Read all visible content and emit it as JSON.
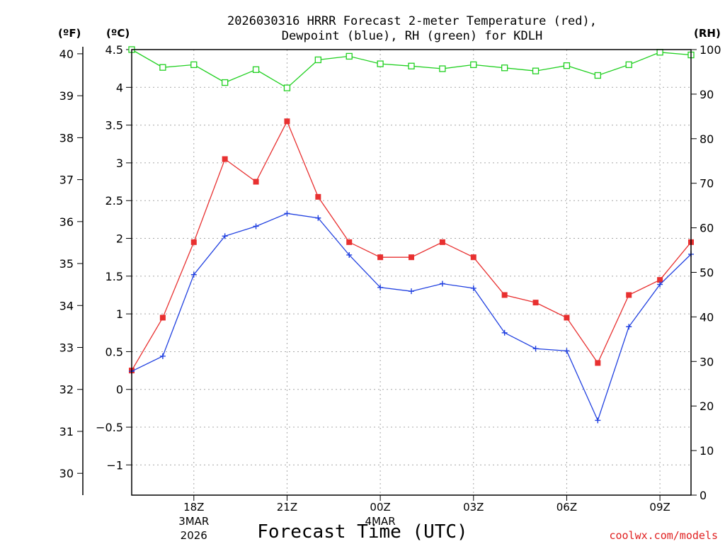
{
  "chart_data": {
    "type": "line",
    "title_line1": "2026030316 HRRR Forecast 2-meter Temperature (red),",
    "title_line2": "Dewpoint (blue), RH (green) for KDLH",
    "xlabel": "Forecast Time (UTC)",
    "credit": "coolwx.com/models",
    "unit_f": "(ºF)",
    "unit_c": "(ºC)",
    "unit_rh": "(RH)",
    "x_hours": [
      16,
      17,
      18,
      19,
      20,
      21,
      22,
      23,
      24,
      25,
      26,
      27,
      28,
      29,
      30,
      31,
      32,
      33,
      34
    ],
    "xlim": [
      16,
      34
    ],
    "x_ticks": [
      {
        "x": 18,
        "label": "18Z",
        "sub1": "3MAR",
        "sub2": "2026"
      },
      {
        "x": 21,
        "label": "21Z",
        "sub1": "",
        "sub2": ""
      },
      {
        "x": 24,
        "label": "00Z",
        "sub1": "4MAR",
        "sub2": ""
      },
      {
        "x": 27,
        "label": "03Z",
        "sub1": "",
        "sub2": ""
      },
      {
        "x": 30,
        "label": "06Z",
        "sub1": "",
        "sub2": ""
      },
      {
        "x": 33,
        "label": "09Z",
        "sub1": "",
        "sub2": ""
      }
    ],
    "ylim_c": [
      -1.4,
      4.5
    ],
    "ylim_rh": [
      0,
      100
    ],
    "c_ticks": [
      "4.5",
      "4",
      "3.5",
      "3",
      "2.5",
      "2",
      "1.5",
      "1",
      "0.5",
      "0",
      "-0.5",
      "-1"
    ],
    "f_ticks": [
      "40",
      "39",
      "38",
      "37",
      "36",
      "35",
      "34",
      "33",
      "32",
      "31",
      "30"
    ],
    "rh_ticks": [
      "100",
      "90",
      "80",
      "70",
      "60",
      "50",
      "40",
      "30",
      "20",
      "10",
      "0"
    ],
    "series": [
      {
        "name": "Temperature",
        "color": "#e83030",
        "marker": "filled-square",
        "values": [
          0.25,
          0.95,
          1.95,
          3.05,
          2.75,
          3.55,
          2.55,
          1.95,
          1.75,
          1.75,
          1.95,
          1.75,
          1.25,
          1.15,
          0.95,
          0.35,
          1.25,
          1.45,
          1.95
        ]
      },
      {
        "name": "Dewpoint",
        "color": "#2040e0",
        "marker": "plus",
        "values": [
          0.24,
          0.44,
          1.52,
          2.03,
          2.16,
          2.33,
          2.27,
          1.78,
          1.35,
          1.3,
          1.4,
          1.34,
          0.75,
          0.54,
          0.51,
          -0.41,
          0.83,
          1.39,
          1.79
        ]
      },
      {
        "name": "RH",
        "color": "#20d020",
        "marker": "open-square",
        "values": [
          100,
          96,
          96.6,
          92.6,
          95.5,
          91.4,
          97.7,
          98.5,
          96.8,
          96.3,
          95.7,
          96.6,
          95.9,
          95.2,
          96.4,
          94.2,
          96.6,
          99.4,
          98.8
        ]
      }
    ]
  }
}
